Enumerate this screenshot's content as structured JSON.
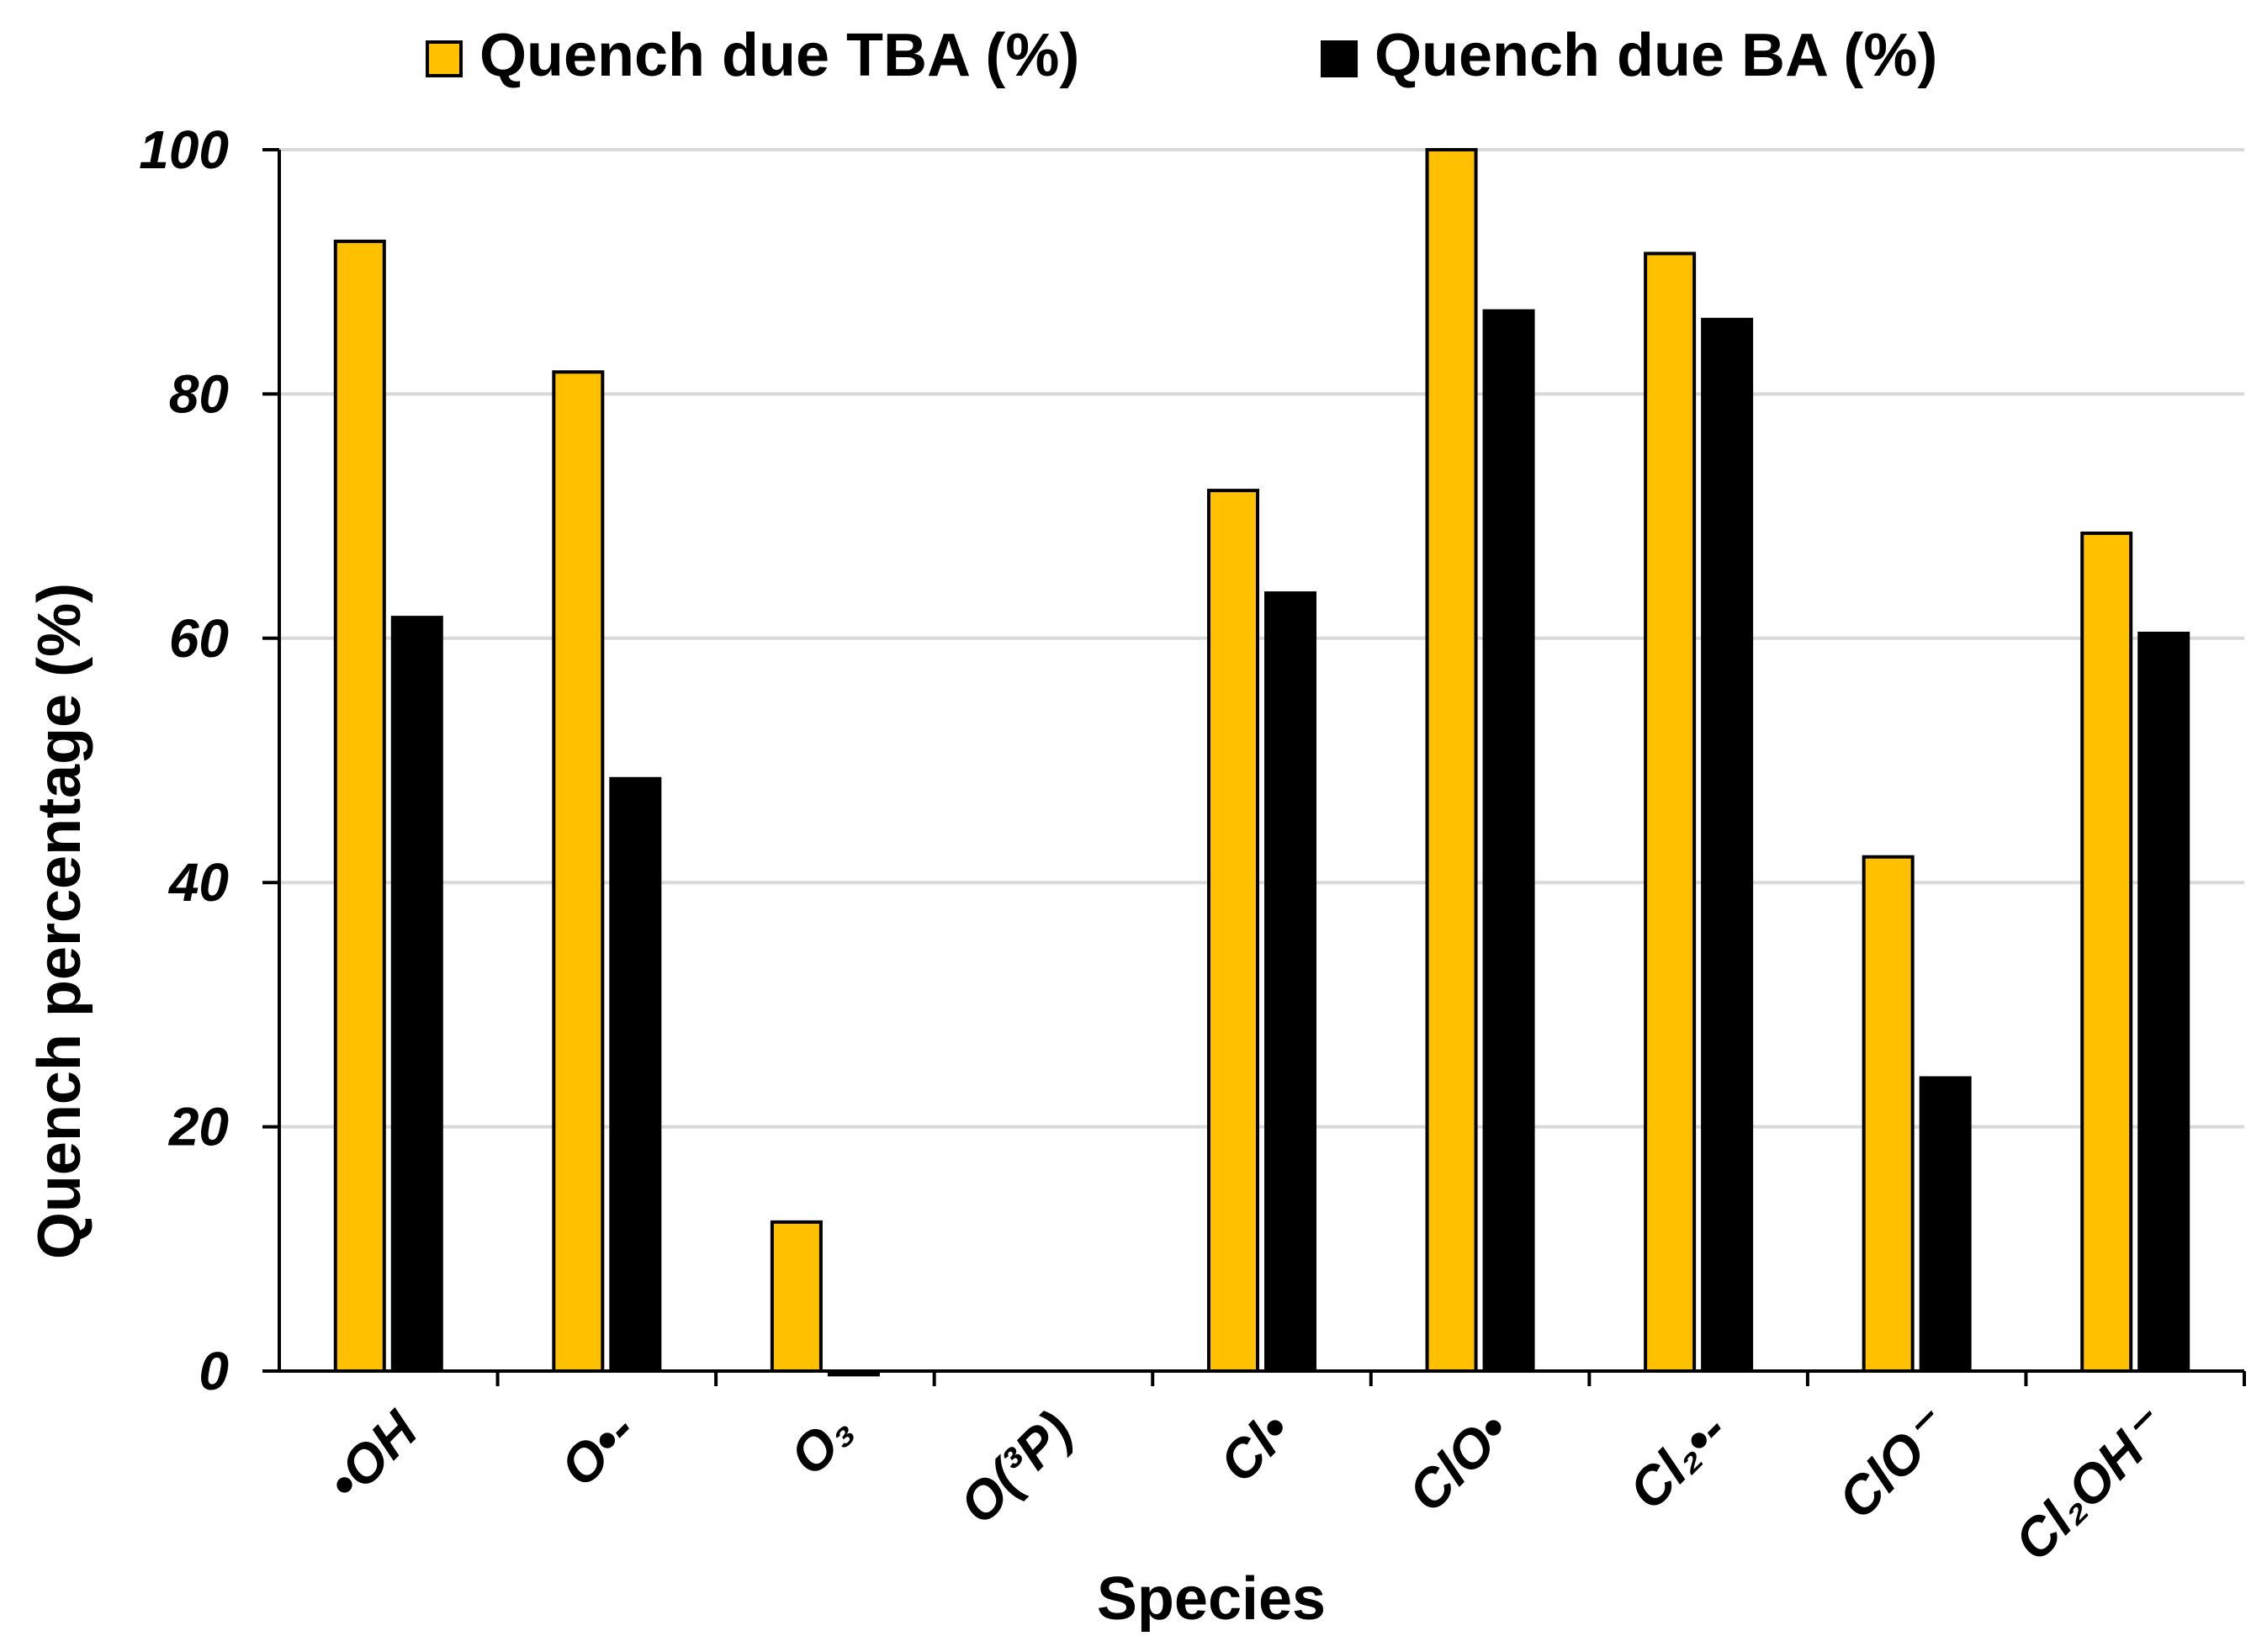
{
  "chart_data": {
    "type": "bar",
    "title": "",
    "xlabel": "Species",
    "ylabel": "Quench percentage (%)",
    "ylim": [
      0,
      100
    ],
    "yticks": [
      0,
      20,
      40,
      60,
      80,
      100
    ],
    "grid": true,
    "legend_position": "top-center",
    "categories": [
      "•OH",
      "O•-",
      "O₃",
      "O(³P)",
      "Cl•",
      "ClO•",
      "Cl₂•-",
      "ClO⁻",
      "Cl₂OH⁻"
    ],
    "series": [
      {
        "name": "Quench due TBA (%)",
        "color": "#FFC000",
        "values": [
          92.5,
          81.8,
          12.2,
          0,
          72.1,
          100.0,
          91.5,
          42.1,
          68.6
        ]
      },
      {
        "name": "Quench due BA (%)",
        "color": "#000000",
        "values": [
          61.7,
          48.5,
          -0.3,
          0,
          63.7,
          86.8,
          86.1,
          24.0,
          60.4
        ]
      }
    ]
  }
}
